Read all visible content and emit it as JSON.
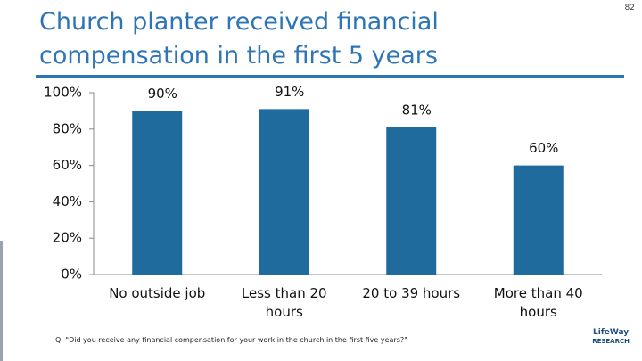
{
  "page_number": "82",
  "footnote": "Q. \"Did you receive any financial compensation for your work in the church in the first five years?\"",
  "logo": {
    "name": "LifeWay",
    "sub": "RESEARCH"
  },
  "chart_data": {
    "type": "bar",
    "title": "Church planter received financial compensation in the first 5 years",
    "categories": [
      "No outside job",
      "Less than 20 hours",
      "20 to 39 hours",
      "More than 40 hours"
    ],
    "values": [
      90,
      91,
      81,
      60
    ],
    "value_labels": [
      "90%",
      "91%",
      "81%",
      "60%"
    ],
    "color": "#1f6b9e",
    "ylim": [
      0,
      100
    ],
    "yticks": [
      {
        "value": 0,
        "label": "0%"
      },
      {
        "value": 20,
        "label": "20%"
      },
      {
        "value": 40,
        "label": "40%"
      },
      {
        "value": 60,
        "label": "60%"
      },
      {
        "value": 80,
        "label": "80%"
      },
      {
        "value": 100,
        "label": "100%"
      }
    ],
    "grid": false
  }
}
